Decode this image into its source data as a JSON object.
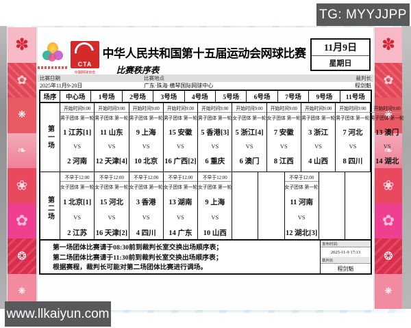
{
  "overlay": {
    "tg_label": "TG: MYYJJPP",
    "watermark": "www.llkaiyun.com"
  },
  "header": {
    "title": "中华人民共和国第十五届运动会网球比赛",
    "subtitle": "比赛秩序表",
    "cta_logo_text": "CTA",
    "cta_logo_caption": "中国网球协会",
    "date_box": {
      "date": "11月9日",
      "weekday": "星期日"
    }
  },
  "info": {
    "date_label": "比赛日期",
    "date_value": "2025年11月9-20日",
    "venue_label": "比赛地点",
    "venue_value": "广东·珠海·横琴国际网球中心",
    "referee_label": "裁判长",
    "referee_value": "程剑魁"
  },
  "table": {
    "order_header": "场序",
    "vs_label": "VS",
    "courts": [
      "中心场",
      "1号场",
      "2号场",
      "3号场",
      "4号场",
      "5号场",
      "6号场",
      "7号场",
      "9号场",
      "11号场"
    ],
    "rows": [
      {
        "order": "第一场",
        "matches": [
          {
            "time": "开始时间9:00",
            "event": "男子团体 第一轮",
            "team1": "1 江苏[1]",
            "team2": "2 河南"
          },
          {
            "time": "开始时间9:00",
            "event": "男子团体 第一轮",
            "team1": "11 山东",
            "team2": "12 天津[4]"
          },
          {
            "time": "开始时间9:00",
            "event": "男子团体 第一轮",
            "team1": "9 上海",
            "team2": "10 北京"
          },
          {
            "time": "开始时间9:00",
            "event": "男子团体 第一轮",
            "team1": "15 安徽",
            "team2": "16 广西[2]"
          },
          {
            "time": "开始时间9:00",
            "event": "男子团体 第一轮",
            "team1": "5 香港[3]",
            "team2": "6 重庆"
          },
          {
            "time": "开始时间9:00",
            "event": "女子团体 第一轮",
            "team1": "5 浙江[4]",
            "team2": "6 澳门"
          },
          {
            "time": "开始时间9:00",
            "event": "女子团体 第一轮",
            "team1": "7 安徽",
            "team2": "8 江西"
          },
          {
            "time": "开始时间9:00",
            "event": "男子团体 第一轮",
            "team1": "3 浙江",
            "team2": "4 山西"
          },
          {
            "time": "开始时间9:00",
            "event": "男子团体 第一轮",
            "team1": "7 河北",
            "team2": "8 四川"
          },
          {
            "time": "开始时间9:00",
            "event": "男子团体 第一轮",
            "team1": "13 澳门",
            "team2": "14 湖北"
          }
        ]
      },
      {
        "order": "第二场",
        "matches": [
          {
            "time": "不早于12:00",
            "event": "女子团体 第一轮",
            "team1": "1 北京[1]",
            "team2": "2 江苏"
          },
          {
            "time": "不早于12:00",
            "event": "女子团体 第一轮",
            "team1": "15 河北",
            "team2": "16 天津[2]"
          },
          {
            "time": "不早于12:00",
            "event": "女子团体 第一轮",
            "team1": "3 香港",
            "team2": "4 四川"
          },
          {
            "time": "不早于12:00",
            "event": "女子团体 第一轮",
            "team1": "13 湖南",
            "team2": "14 广东"
          },
          {
            "time": "不早于12:00",
            "event": "女子团体 第一轮",
            "team1": "9 上海",
            "team2": "10 山西"
          },
          null,
          null,
          {
            "time": "不早于12:00",
            "event": "女子团体 第一轮",
            "team1": "11 河南",
            "team2": "12 湖北[3]"
          },
          null,
          null
        ]
      }
    ]
  },
  "notes": {
    "line1": "第一场团体比赛请于08:30前到裁判长室交换出场顺序表；",
    "line2": "第二场团体比赛请于11:30前到裁判长室交换出场顺序表；",
    "line3": "根据赛程，裁判长可能对第二场团体比赛进行调场。",
    "publish_label": "发布时间:",
    "publish_value": "2025-11-9 17:13",
    "referee_label": "裁判长",
    "referee_value": "程剑魁"
  }
}
